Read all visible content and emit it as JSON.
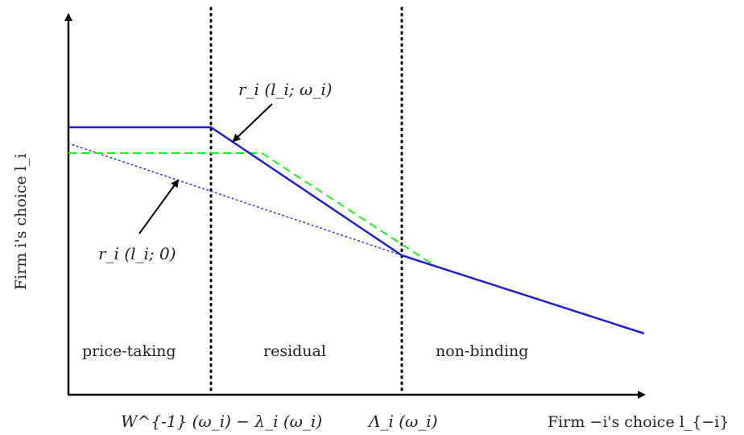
{
  "regions": {
    "price_taking": "price-taking",
    "residual": "residual",
    "non_binding": "non-binding"
  },
  "curve_labels": {
    "r_omega": "r_i (l_i; ω_i)",
    "r_zero": "r_i (l_i; 0)"
  },
  "x_ticks": {
    "left_threshold": "W^{-1} (ω_i) − λ_i (ω_i)",
    "right_threshold": "Λ_i (ω_i)"
  },
  "axes": {
    "x_title": "Firm −i's choice l_{−i}",
    "y_title": "Firm i's choice l_i"
  },
  "colors": {
    "solid_curve": "#1f1fd6",
    "dashed_curve": "#22ee22",
    "dotted_curve": "#3a3aee",
    "axis": "#000000"
  }
}
